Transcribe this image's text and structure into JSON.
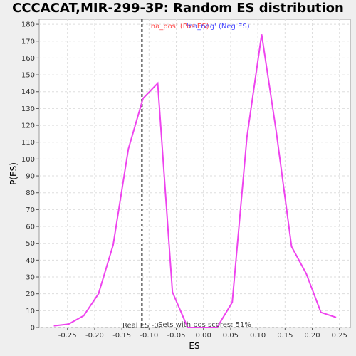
{
  "chart_data": {
    "type": "line",
    "title": "CCCACAT,MIR-299-3P: Random ES distribution",
    "xlabel": "ES",
    "ylabel": "P(ES)",
    "xlim": [
      -0.302,
      0.27
    ],
    "ylim": [
      0,
      183
    ],
    "xticks": [
      -0.25,
      -0.2,
      -0.15,
      -0.1,
      -0.05,
      0.0,
      0.05,
      0.1,
      0.15,
      0.2,
      0.25
    ],
    "xtick_labels": [
      "-0.25",
      "-0.20",
      "-0.15",
      "-0.10",
      "-0.05",
      "0.00",
      "0.05",
      "0.10",
      "0.15",
      "0.20",
      "0.25"
    ],
    "yticks": [
      0,
      10,
      20,
      30,
      40,
      50,
      60,
      70,
      80,
      90,
      100,
      110,
      120,
      130,
      140,
      150,
      160,
      170,
      180
    ],
    "grid": true,
    "series": [
      {
        "color": "#ee44ee",
        "x": [
          -0.275,
          -0.248,
          -0.22,
          -0.193,
          -0.166,
          -0.138,
          -0.111,
          -0.084,
          -0.057,
          -0.029,
          -0.002,
          0.025,
          0.053,
          0.08,
          0.107,
          0.134,
          0.162,
          0.189,
          0.216,
          0.244
        ],
        "y": [
          1,
          2,
          7,
          20,
          49,
          106,
          136,
          145,
          21,
          0,
          0,
          0,
          15,
          113,
          174,
          116,
          48,
          32,
          9,
          6
        ]
      }
    ],
    "real_es": -0.113,
    "real_es_label": "Real ES -0.",
    "pos_scores_label": "Sets with pos scores: 51%",
    "legend": [
      {
        "label": "'na_pos' (Pos ES)",
        "color": "#ff4444"
      },
      {
        "label": "'na_neg' (Neg ES)",
        "color": "#4444ff"
      }
    ],
    "legend_position": "top"
  }
}
